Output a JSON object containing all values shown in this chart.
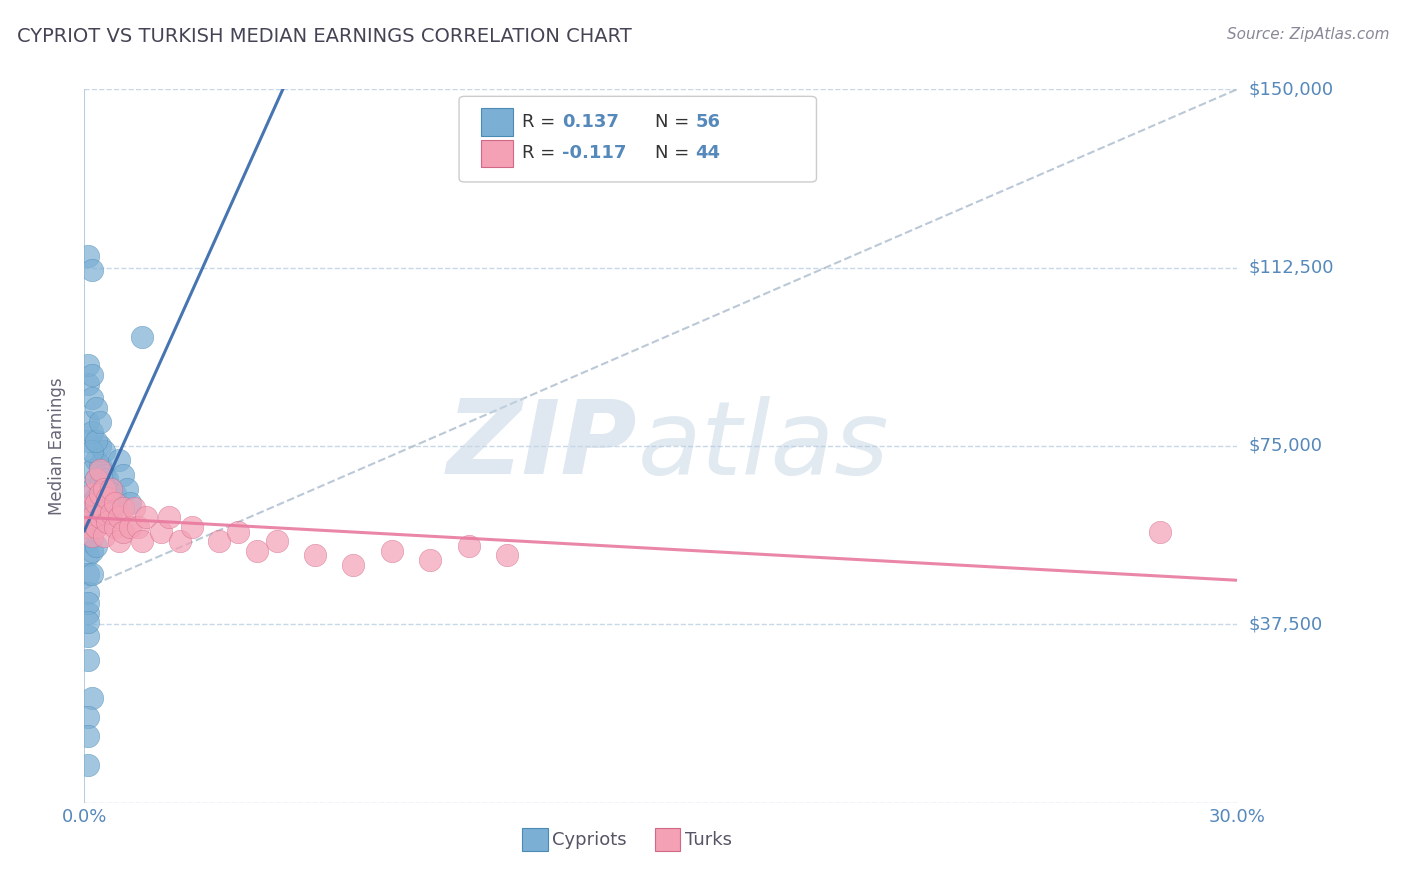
{
  "title": "CYPRIOT VS TURKISH MEDIAN EARNINGS CORRELATION CHART",
  "source": "Source: ZipAtlas.com",
  "ylabel": "Median Earnings",
  "xlim": [
    0.0,
    0.3
  ],
  "ylim": [
    0,
    150000
  ],
  "yticks": [
    0,
    37500,
    75000,
    112500,
    150000
  ],
  "ytick_labels": [
    "",
    "$37,500",
    "$75,000",
    "$112,500",
    "$150,000"
  ],
  "xticks": [
    0.0,
    0.05,
    0.1,
    0.15,
    0.2,
    0.25,
    0.3
  ],
  "xtick_display": [
    "0.0%",
    "",
    "",
    "",
    "",
    "",
    "30.0%"
  ],
  "cypriot_color": "#7bafd4",
  "turk_color": "#f4a0b5",
  "cypriot_edge_color": "#4a8ab5",
  "turk_edge_color": "#d06888",
  "cypriot_line_color": "#3366aa",
  "turk_line_color": "#e87a9f",
  "dashed_line_color": "#aabbcc",
  "R_cypriot": 0.137,
  "N_cypriot": 56,
  "R_turk": -0.117,
  "N_turk": 44,
  "watermark_zip": "ZIP",
  "watermark_atlas": "atlas",
  "background_color": "#ffffff",
  "grid_color": "#c8d8e8",
  "axis_label_color": "#5588bb",
  "legend_text_color": "#333333",
  "cypriot_x": [
    0.001,
    0.001,
    0.001,
    0.001,
    0.001,
    0.001,
    0.001,
    0.001,
    0.002,
    0.002,
    0.002,
    0.002,
    0.002,
    0.002,
    0.003,
    0.003,
    0.003,
    0.003,
    0.003,
    0.004,
    0.004,
    0.004,
    0.004,
    0.005,
    0.005,
    0.005,
    0.006,
    0.006,
    0.007,
    0.007,
    0.008,
    0.009,
    0.01,
    0.011,
    0.012,
    0.001,
    0.001,
    0.002,
    0.002,
    0.003,
    0.001,
    0.002,
    0.003,
    0.004,
    0.001,
    0.002,
    0.001,
    0.002,
    0.001,
    0.001,
    0.001,
    0.002,
    0.001,
    0.001,
    0.001,
    0.015
  ],
  "cypriot_y": [
    62000,
    58000,
    55000,
    52000,
    48000,
    44000,
    40000,
    35000,
    70000,
    66000,
    63000,
    58000,
    53000,
    48000,
    72000,
    68000,
    64000,
    59000,
    54000,
    75000,
    71000,
    67000,
    62000,
    74000,
    69000,
    64000,
    68000,
    63000,
    66000,
    61000,
    65000,
    72000,
    69000,
    66000,
    63000,
    80000,
    76000,
    78000,
    74000,
    76000,
    88000,
    85000,
    83000,
    80000,
    92000,
    90000,
    115000,
    112000,
    42000,
    38000,
    30000,
    22000,
    18000,
    14000,
    8000,
    98000
  ],
  "turk_x": [
    0.001,
    0.001,
    0.002,
    0.002,
    0.002,
    0.003,
    0.003,
    0.003,
    0.004,
    0.004,
    0.004,
    0.005,
    0.005,
    0.005,
    0.006,
    0.006,
    0.007,
    0.007,
    0.008,
    0.008,
    0.009,
    0.009,
    0.01,
    0.01,
    0.012,
    0.013,
    0.014,
    0.015,
    0.016,
    0.02,
    0.022,
    0.025,
    0.028,
    0.035,
    0.04,
    0.045,
    0.05,
    0.06,
    0.07,
    0.08,
    0.09,
    0.1,
    0.11,
    0.28
  ],
  "turk_y": [
    62000,
    58000,
    65000,
    60000,
    56000,
    68000,
    63000,
    58000,
    70000,
    65000,
    60000,
    66000,
    61000,
    56000,
    64000,
    59000,
    66000,
    61000,
    63000,
    58000,
    60000,
    55000,
    62000,
    57000,
    58000,
    62000,
    58000,
    55000,
    60000,
    57000,
    60000,
    55000,
    58000,
    55000,
    57000,
    53000,
    55000,
    52000,
    50000,
    53000,
    51000,
    54000,
    52000,
    57000
  ]
}
